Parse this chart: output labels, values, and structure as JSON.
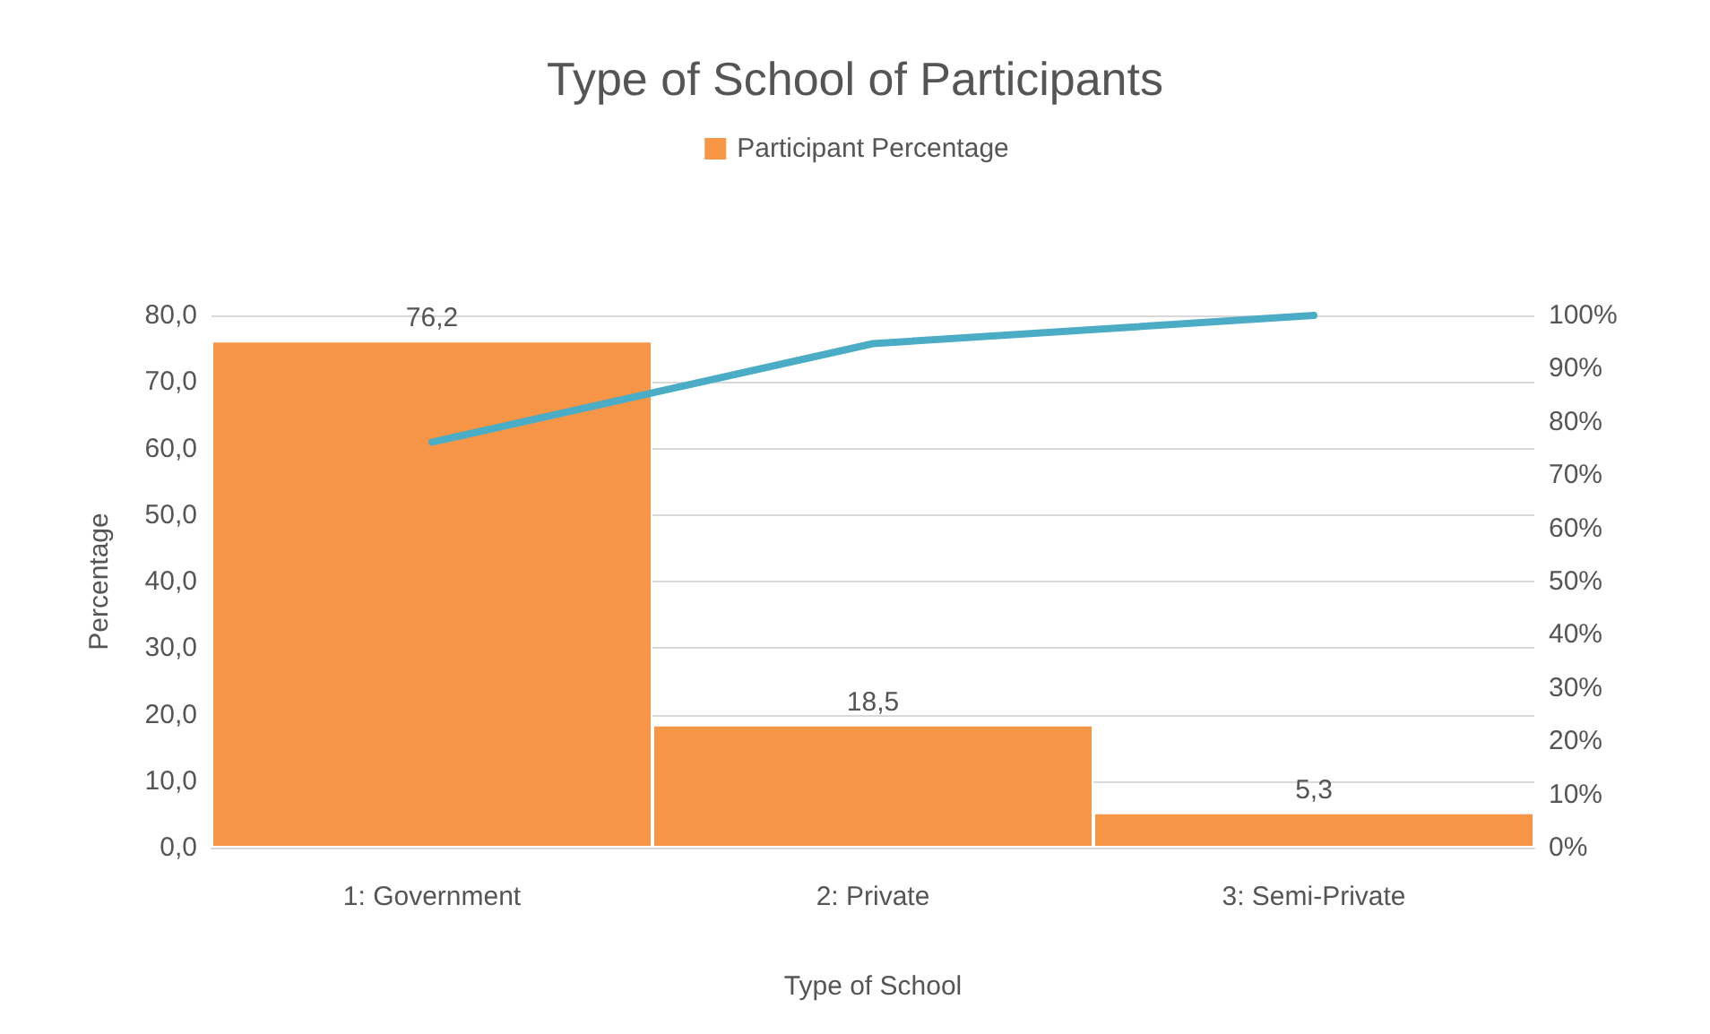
{
  "chart_data": {
    "type": "bar",
    "title": "Type of School of Participants",
    "xlabel": "Type of School",
    "ylabel": "Percentage",
    "categories": [
      "1: Government",
      "2: Private",
      "3: Semi-Private"
    ],
    "series": [
      {
        "name": "Participant Percentage",
        "color": "#f79646",
        "values": [
          76.2,
          18.5,
          5.3
        ],
        "value_labels": [
          "76,2",
          "18,5",
          "5,3"
        ]
      },
      {
        "type": "line",
        "axis": "y2",
        "color": "#4bacc6",
        "values": [
          76.2,
          94.7,
          100
        ]
      }
    ],
    "ylim": [
      0,
      80
    ],
    "yticks": [
      {
        "value": 0,
        "label": "0,0"
      },
      {
        "value": 10,
        "label": "10,0"
      },
      {
        "value": 20,
        "label": "20,0"
      },
      {
        "value": 30,
        "label": "30,0"
      },
      {
        "value": 40,
        "label": "40,0"
      },
      {
        "value": 50,
        "label": "50,0"
      },
      {
        "value": 60,
        "label": "60,0"
      },
      {
        "value": 70,
        "label": "70,0"
      },
      {
        "value": 80,
        "label": "80,0"
      }
    ],
    "y2lim": [
      0,
      100
    ],
    "y2ticks": [
      {
        "value": 0,
        "label": "0%"
      },
      {
        "value": 10,
        "label": "10%"
      },
      {
        "value": 20,
        "label": "20%"
      },
      {
        "value": 30,
        "label": "30%"
      },
      {
        "value": 40,
        "label": "40%"
      },
      {
        "value": 50,
        "label": "50%"
      },
      {
        "value": 60,
        "label": "60%"
      },
      {
        "value": 70,
        "label": "70%"
      },
      {
        "value": 80,
        "label": "80%"
      },
      {
        "value": 90,
        "label": "90%"
      },
      {
        "value": 100,
        "label": "100%"
      }
    ],
    "grid": "y",
    "legend": "top",
    "marker": "none"
  }
}
